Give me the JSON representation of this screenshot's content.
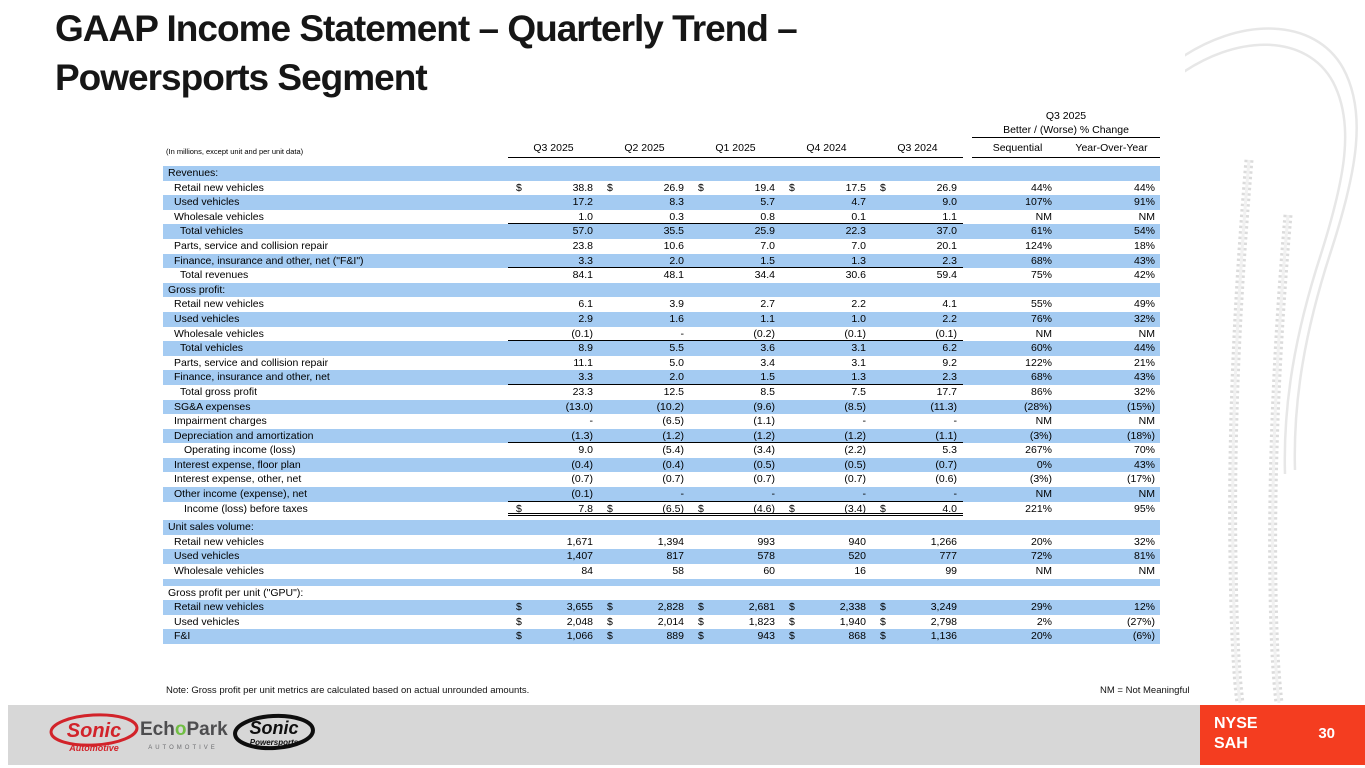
{
  "slide": {
    "title_line1": "GAAP Income Statement – Quarterly Trend –",
    "title_line2": "Powersports Segment",
    "note": "Note: Gross profit per unit metrics are calculated based on actual unrounded amounts.",
    "nm_legend": "NM = Not Meaningful"
  },
  "ticker": {
    "exchange": "NYSE",
    "symbol": "SAH",
    "page_number": "30"
  },
  "logos": {
    "sonic_automotive": {
      "name": "Sonic",
      "sub": "Automotive"
    },
    "echopark": {
      "pre": "Ech",
      "o": "o",
      "post": "Park",
      "sub": "AUTOMOTIVE"
    },
    "sonic_powersports": {
      "name": "Sonic",
      "sub": "Powersports"
    }
  },
  "colors": {
    "row_blue": "#A4CBF2",
    "accent_red": "#F43D20",
    "footer_gray": "#D7D7D7",
    "sonic_red": "#D2232A",
    "echopark_green": "#71BF44",
    "echopark_gray": "#4D4D4F"
  },
  "table": {
    "unit_label": "(In millions, except unit and per unit data)",
    "change_header": {
      "period": "Q3 2025",
      "label": "Better / (Worse) % Change",
      "col1": "Sequential",
      "col2": "Year-Over-Year"
    },
    "period_headers": [
      "Q3 2025",
      "Q2 2025",
      "Q1 2025",
      "Q4 2024",
      "Q3 2024"
    ],
    "rows": [
      {
        "type": "section",
        "label": "Revenues:",
        "shaded": true
      },
      {
        "type": "item",
        "label": "Retail new vehicles",
        "dollar": true,
        "values": [
          "38.8",
          "26.9",
          "19.4",
          "17.5",
          "26.9"
        ],
        "seq": "44%",
        "yoy": "44%",
        "shaded": false
      },
      {
        "type": "item",
        "label": "Used vehicles",
        "values": [
          "17.2",
          "8.3",
          "5.7",
          "4.7",
          "9.0"
        ],
        "seq": "107%",
        "yoy": "91%",
        "shaded": true
      },
      {
        "type": "item",
        "label": "Wholesale vehicles",
        "values": [
          "1.0",
          "0.3",
          "0.8",
          "0.1",
          "1.1"
        ],
        "seq": "NM",
        "yoy": "NM",
        "shaded": false,
        "underline": true
      },
      {
        "type": "item",
        "indent": "total",
        "label": "Total vehicles",
        "values": [
          "57.0",
          "35.5",
          "25.9",
          "22.3",
          "37.0"
        ],
        "seq": "61%",
        "yoy": "54%",
        "shaded": true
      },
      {
        "type": "item",
        "label": "Parts, service and collision repair",
        "values": [
          "23.8",
          "10.6",
          "7.0",
          "7.0",
          "20.1"
        ],
        "seq": "124%",
        "yoy": "18%",
        "shaded": false
      },
      {
        "type": "item",
        "label": "Finance, insurance and other, net (\"F&I\")",
        "values": [
          "3.3",
          "2.0",
          "1.5",
          "1.3",
          "2.3"
        ],
        "seq": "68%",
        "yoy": "43%",
        "shaded": true,
        "underline": true
      },
      {
        "type": "item",
        "indent": "total",
        "label": "Total revenues",
        "values": [
          "84.1",
          "48.1",
          "34.4",
          "30.6",
          "59.4"
        ],
        "seq": "75%",
        "yoy": "42%",
        "shaded": false
      },
      {
        "type": "section",
        "label": "Gross profit:",
        "shaded": true
      },
      {
        "type": "item",
        "label": "Retail new vehicles",
        "values": [
          "6.1",
          "3.9",
          "2.7",
          "2.2",
          "4.1"
        ],
        "seq": "55%",
        "yoy": "49%",
        "shaded": false
      },
      {
        "type": "item",
        "label": "Used vehicles",
        "values": [
          "2.9",
          "1.6",
          "1.1",
          "1.0",
          "2.2"
        ],
        "seq": "76%",
        "yoy": "32%",
        "shaded": true
      },
      {
        "type": "item",
        "label": "Wholesale vehicles",
        "values": [
          "(0.1)",
          "-",
          "(0.2)",
          "(0.1)",
          "(0.1)"
        ],
        "seq": "NM",
        "yoy": "NM",
        "shaded": false,
        "underline": true
      },
      {
        "type": "item",
        "indent": "total",
        "label": "Total vehicles",
        "values": [
          "8.9",
          "5.5",
          "3.6",
          "3.1",
          "6.2"
        ],
        "seq": "60%",
        "yoy": "44%",
        "shaded": true
      },
      {
        "type": "item",
        "label": "Parts, service and collision repair",
        "values": [
          "11.1",
          "5.0",
          "3.4",
          "3.1",
          "9.2"
        ],
        "seq": "122%",
        "yoy": "21%",
        "shaded": false
      },
      {
        "type": "item",
        "label": "Finance, insurance and other, net",
        "values": [
          "3.3",
          "2.0",
          "1.5",
          "1.3",
          "2.3"
        ],
        "seq": "68%",
        "yoy": "43%",
        "shaded": true,
        "underline": true
      },
      {
        "type": "item",
        "indent": "total",
        "label": "Total gross profit",
        "values": [
          "23.3",
          "12.5",
          "8.5",
          "7.5",
          "17.7"
        ],
        "seq": "86%",
        "yoy": "32%",
        "shaded": false
      },
      {
        "type": "item",
        "label": "SG&A expenses",
        "values": [
          "(13.0)",
          "(10.2)",
          "(9.6)",
          "(8.5)",
          "(11.3)"
        ],
        "seq": "(28%)",
        "yoy": "(15%)",
        "shaded": true
      },
      {
        "type": "item",
        "label": "Impairment charges",
        "values": [
          "-",
          "(6.5)",
          "(1.1)",
          "-",
          "-"
        ],
        "seq": "NM",
        "yoy": "NM",
        "shaded": false
      },
      {
        "type": "item",
        "label": "Depreciation and amortization",
        "values": [
          "(1.3)",
          "(1.2)",
          "(1.2)",
          "(1.2)",
          "(1.1)"
        ],
        "seq": "(3%)",
        "yoy": "(18%)",
        "shaded": true,
        "underline": true
      },
      {
        "type": "item",
        "indent": "total2",
        "label": "Operating income (loss)",
        "values": [
          "9.0",
          "(5.4)",
          "(3.4)",
          "(2.2)",
          "5.3"
        ],
        "seq": "267%",
        "yoy": "70%",
        "shaded": false
      },
      {
        "type": "item",
        "label": "Interest expense, floor plan",
        "values": [
          "(0.4)",
          "(0.4)",
          "(0.5)",
          "(0.5)",
          "(0.7)"
        ],
        "seq": "0%",
        "yoy": "43%",
        "shaded": true
      },
      {
        "type": "item",
        "label": "Interest expense, other, net",
        "values": [
          "(0.7)",
          "(0.7)",
          "(0.7)",
          "(0.7)",
          "(0.6)"
        ],
        "seq": "(3%)",
        "yoy": "(17%)",
        "shaded": false
      },
      {
        "type": "item",
        "label": "Other income (expense), net",
        "values": [
          "(0.1)",
          "-",
          "-",
          "-",
          "-"
        ],
        "seq": "NM",
        "yoy": "NM",
        "shaded": true,
        "underline": true
      },
      {
        "type": "item",
        "indent": "total2",
        "label": "Income (loss) before taxes",
        "dollar": true,
        "values": [
          "7.8",
          "(6.5)",
          "(4.6)",
          "(3.4)",
          "4.0"
        ],
        "seq": "221%",
        "yoy": "95%",
        "shaded": false,
        "double_underline": true
      },
      {
        "type": "gap"
      },
      {
        "type": "section",
        "label": "Unit sales volume:",
        "shaded": true
      },
      {
        "type": "item",
        "label": "Retail new vehicles",
        "values": [
          "1,671",
          "1,394",
          "993",
          "940",
          "1,266"
        ],
        "seq": "20%",
        "yoy": "32%",
        "shaded": false
      },
      {
        "type": "item",
        "label": "Used vehicles",
        "values": [
          "1,407",
          "817",
          "578",
          "520",
          "777"
        ],
        "seq": "72%",
        "yoy": "81%",
        "shaded": true
      },
      {
        "type": "item",
        "label": "Wholesale vehicles",
        "values": [
          "84",
          "58",
          "60",
          "16",
          "99"
        ],
        "seq": "NM",
        "yoy": "NM",
        "shaded": false
      },
      {
        "type": "sep"
      },
      {
        "type": "section",
        "label": "Gross profit per unit (\"GPU\"):",
        "shaded": false
      },
      {
        "type": "item",
        "label": "Retail new vehicles",
        "dollar": true,
        "values": [
          "3,655",
          "2,828",
          "2,681",
          "2,338",
          "3,249"
        ],
        "seq": "29%",
        "yoy": "12%",
        "shaded": true
      },
      {
        "type": "item",
        "label": "Used vehicles",
        "dollar": true,
        "values": [
          "2,048",
          "2,014",
          "1,823",
          "1,940",
          "2,798"
        ],
        "seq": "2%",
        "yoy": "(27%)",
        "shaded": false
      },
      {
        "type": "item",
        "label": "F&I",
        "dollar": true,
        "values": [
          "1,066",
          "889",
          "943",
          "868",
          "1,136"
        ],
        "seq": "20%",
        "yoy": "(6%)",
        "shaded": true
      }
    ]
  }
}
